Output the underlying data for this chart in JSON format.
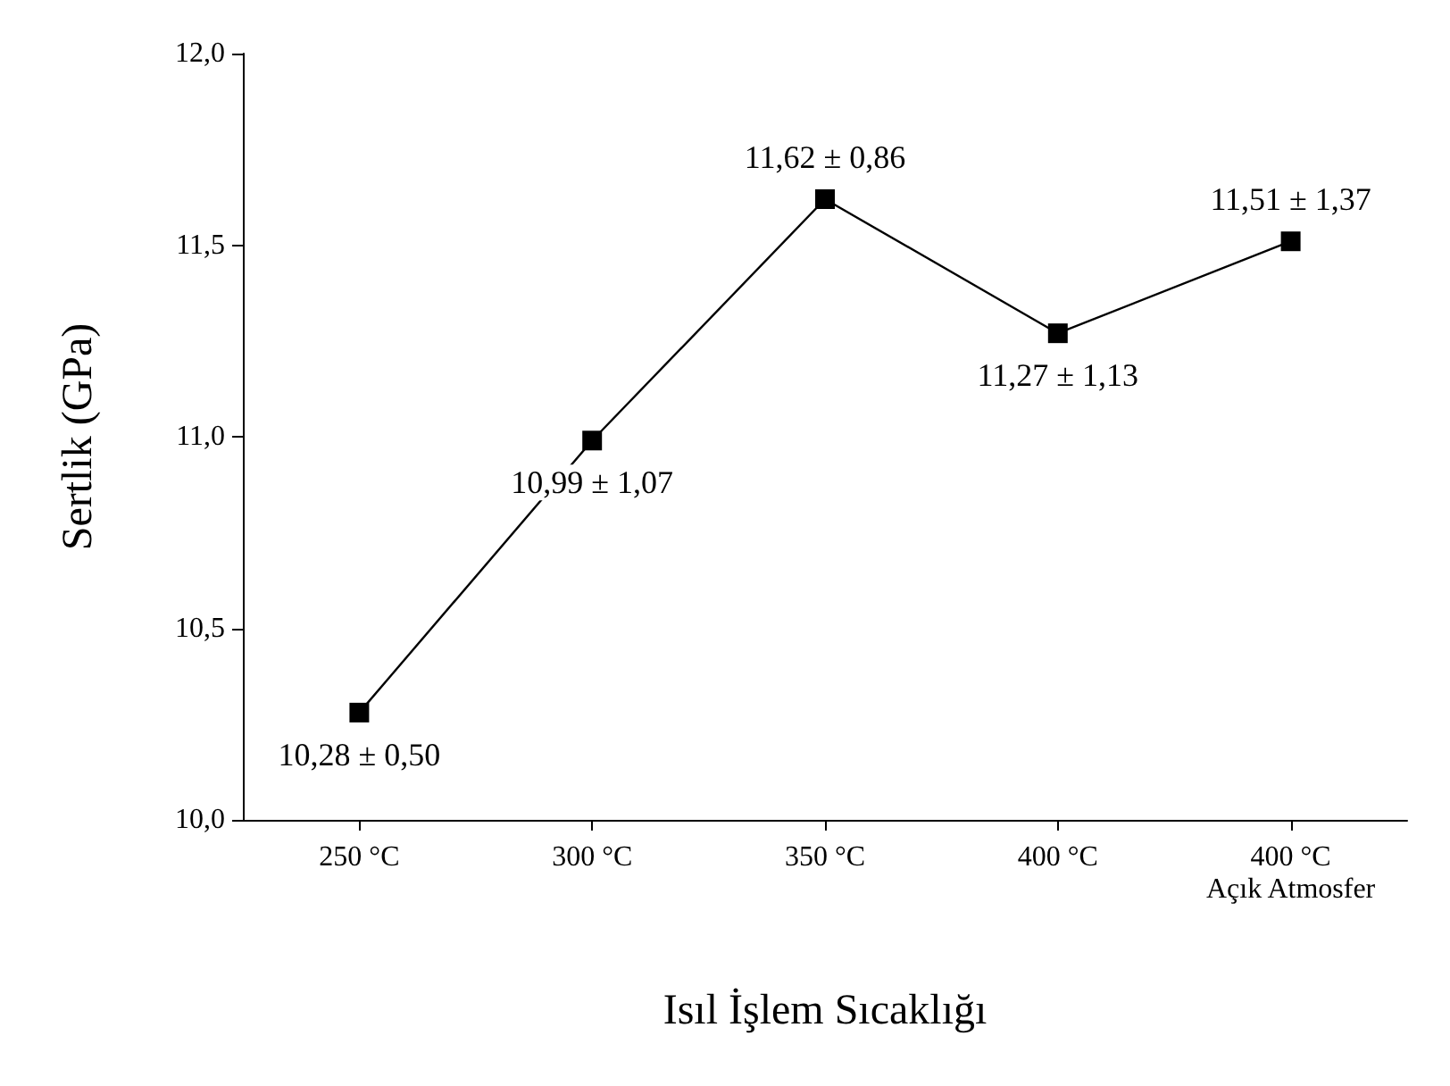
{
  "chart_data": {
    "type": "line",
    "xlabel": "Isıl İşlem Sıcaklığı",
    "ylabel": "Sertlik (GPa)",
    "categories": [
      "250 °C",
      "300 °C",
      "350 °C",
      "400 °C",
      "400 °C\nAçık Atmosfer"
    ],
    "series": [
      {
        "color": "#000000",
        "values": [
          10.28,
          10.99,
          11.62,
          11.27,
          11.51
        ],
        "value_labels": [
          "10,28 ± 0,50",
          "10,99 ± 1,07",
          "11,62 ± 0,86",
          "11,27 ± 1,13",
          "11,51 ± 1,37"
        ]
      }
    ],
    "ylim": [
      10,
      12
    ],
    "yticks": [
      {
        "value": 10,
        "label": "10,0"
      },
      {
        "value": 10.5,
        "label": "10,5"
      },
      {
        "value": 11,
        "label": "11,0"
      },
      {
        "value": 11.5,
        "label": "11,5"
      },
      {
        "value": 12,
        "label": "12,0"
      }
    ],
    "grid": false,
    "marker": "square",
    "line_style": "solid"
  }
}
